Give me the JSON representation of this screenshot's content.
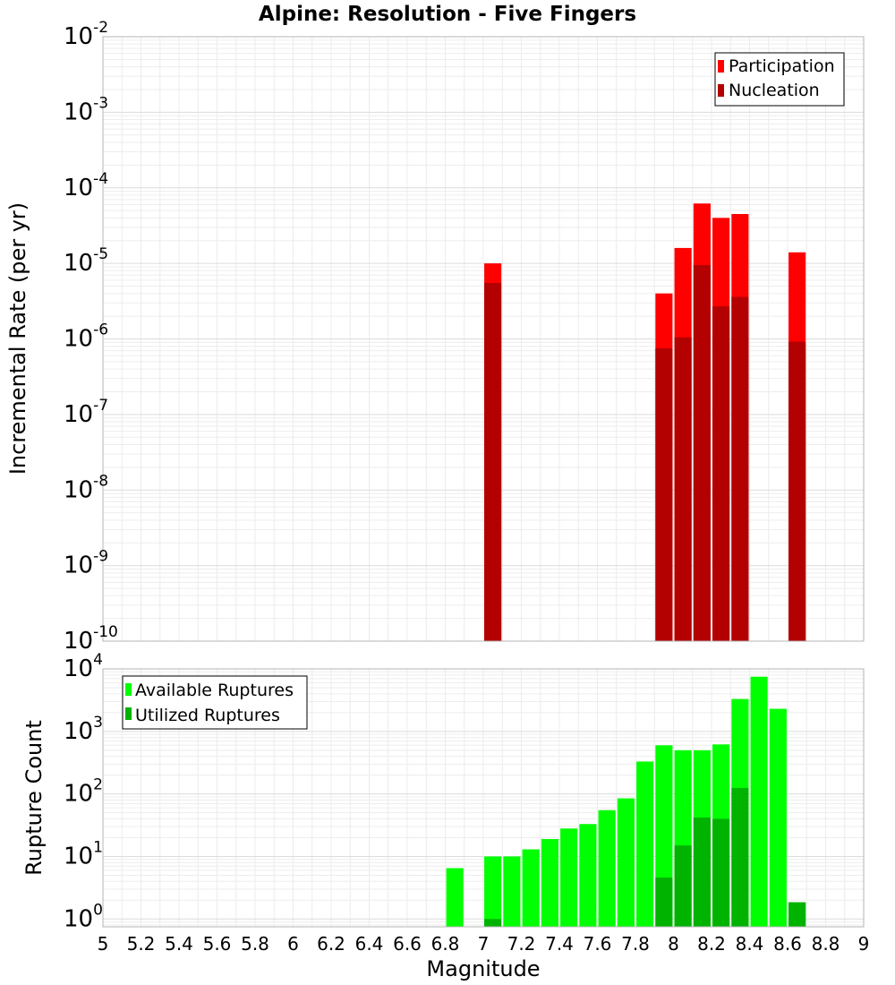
{
  "title": "Alpine: Resolution - Five Fingers",
  "colors": {
    "participation": "#ff0000",
    "nucleation": "#b30000",
    "available": "#00ff00",
    "utilized": "#00b300"
  },
  "chart_data": [
    {
      "type": "bar",
      "title": "Alpine: Resolution - Five Fingers",
      "xlabel": "Magnitude",
      "ylabel": "Incremental Rate (per yr)",
      "yscale": "log",
      "xlim": [
        5,
        9
      ],
      "ylim": [
        1e-10,
        0.01
      ],
      "ytick_exponents": [
        -10,
        -9,
        -8,
        -7,
        -6,
        -5,
        -4,
        -3,
        -2
      ],
      "grid": true,
      "legend_position": "top-right",
      "series": [
        {
          "name": "Participation",
          "x": [
            7.05,
            7.95,
            8.05,
            8.15,
            8.25,
            8.35,
            8.65
          ],
          "values": [
            1e-05,
            4e-06,
            1.6e-05,
            6.2e-05,
            4e-05,
            4.5e-05,
            1.4e-05
          ]
        },
        {
          "name": "Nucleation",
          "x": [
            7.05,
            7.95,
            8.05,
            8.15,
            8.25,
            8.35,
            8.65
          ],
          "values": [
            5.5e-06,
            7.5e-07,
            1.05e-06,
            9.5e-06,
            2.7e-06,
            3.6e-06,
            9.2e-07
          ]
        }
      ]
    },
    {
      "type": "bar",
      "xlabel": "Magnitude",
      "ylabel": "Rupture Count",
      "yscale": "log",
      "xlim": [
        5,
        9
      ],
      "ylim": [
        0.75,
        10000
      ],
      "ytick_exponents": [
        0,
        1,
        2,
        3,
        4
      ],
      "xticks": [
        "5",
        "5.2",
        "5.4",
        "5.6",
        "5.8",
        "6",
        "6.2",
        "6.4",
        "6.6",
        "6.8",
        "7",
        "7.2",
        "7.4",
        "7.6",
        "7.8",
        "8",
        "8.2",
        "8.4",
        "8.6",
        "8.8",
        "9"
      ],
      "grid": true,
      "legend_position": "top-left",
      "series": [
        {
          "name": "Available Ruptures",
          "x": [
            6.85,
            7.05,
            7.15,
            7.25,
            7.35,
            7.45,
            7.55,
            7.65,
            7.75,
            7.85,
            7.95,
            8.05,
            8.15,
            8.25,
            8.35,
            8.45,
            8.55,
            8.65
          ],
          "values": [
            6.5,
            10,
            10,
            13,
            19,
            28,
            33,
            55,
            85,
            330,
            600,
            500,
            500,
            620,
            3300,
            7500,
            2300,
            1.85
          ]
        },
        {
          "name": "Utilized Ruptures",
          "x": [
            7.05,
            7.95,
            8.05,
            8.15,
            8.25,
            8.35,
            8.65
          ],
          "values": [
            1,
            4.6,
            15,
            42,
            40,
            125,
            1.85
          ]
        }
      ]
    }
  ]
}
